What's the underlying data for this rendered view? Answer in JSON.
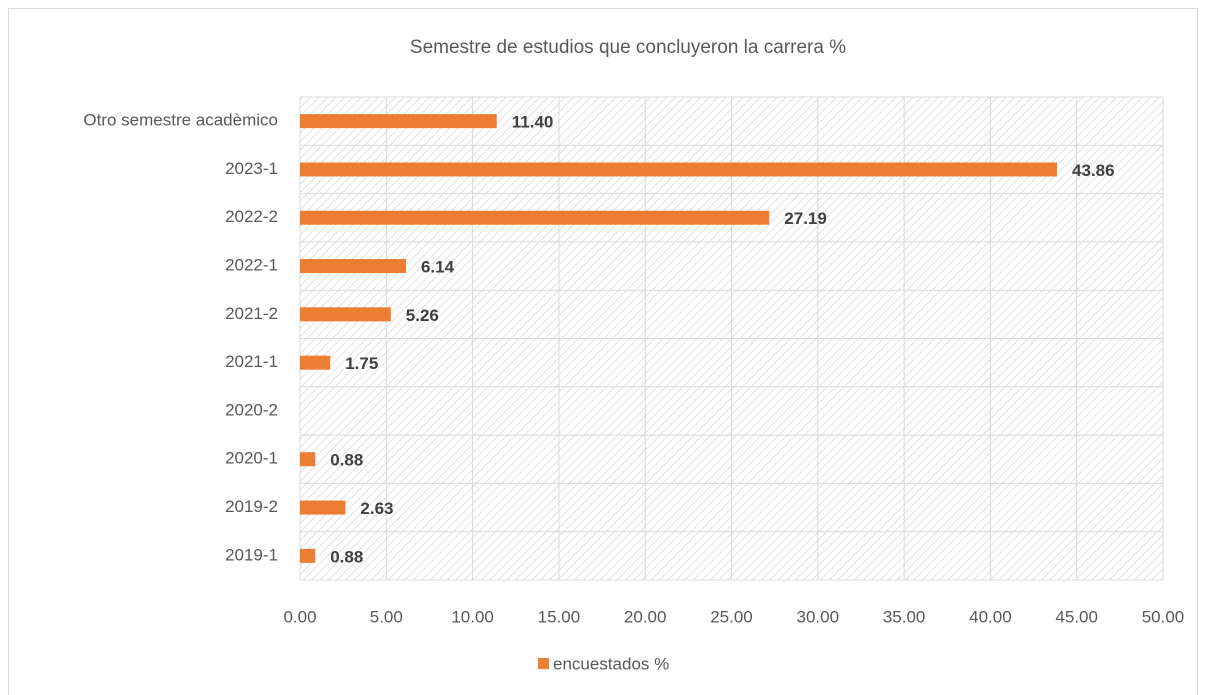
{
  "chart_data": {
    "type": "bar",
    "orientation": "horizontal",
    "title": "Semestre de estudios que concluyeron la carrera %",
    "categories": [
      "Otro semestre acadèmico",
      "2023-1",
      "2022-2",
      "2022-1",
      "2021-2",
      "2021-1",
      "2020-2",
      "2020-1",
      "2019-2",
      "2019-1"
    ],
    "series": [
      {
        "name": "encuestados %",
        "color": "#ed7d31",
        "values": [
          11.4,
          43.86,
          27.19,
          6.14,
          5.26,
          1.75,
          null,
          0.88,
          2.63,
          0.88
        ],
        "value_labels": [
          "11.40",
          "43.86",
          "27.19",
          "6.14",
          "5.26",
          "1.75",
          null,
          "0.88",
          "2.63",
          "0.88"
        ]
      }
    ],
    "xlim": [
      0,
      50
    ],
    "xticks": [
      {
        "value": 0,
        "label": "0.00"
      },
      {
        "value": 5,
        "label": "5.00"
      },
      {
        "value": 10,
        "label": "10.00"
      },
      {
        "value": 15,
        "label": "15.00"
      },
      {
        "value": 20,
        "label": "20.00"
      },
      {
        "value": 25,
        "label": "25.00"
      },
      {
        "value": 30,
        "label": "30.00"
      },
      {
        "value": 35,
        "label": "35.00"
      },
      {
        "value": 40,
        "label": "40.00"
      },
      {
        "value": 45,
        "label": "45.00"
      },
      {
        "value": 50,
        "label": "50.00"
      }
    ],
    "grid": true,
    "legend": "bottom"
  }
}
